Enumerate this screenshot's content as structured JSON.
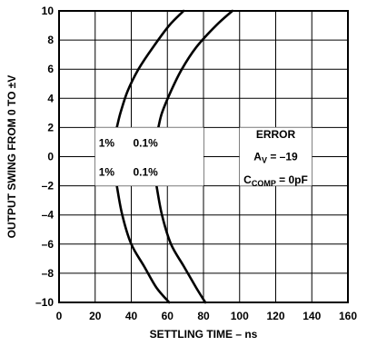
{
  "chart_data": {
    "type": "line",
    "xlabel": "SETTLING TIME – ns",
    "ylabel": "OUTPUT SWING FROM 0 TO ±V",
    "xlim": [
      0,
      160
    ],
    "ylim": [
      -10,
      10
    ],
    "xticks": [
      0,
      20,
      40,
      60,
      80,
      100,
      120,
      140,
      160
    ],
    "yticks": [
      10,
      8,
      6,
      4,
      2,
      0,
      -2,
      -4,
      -6,
      -8,
      -10
    ],
    "ytick_labels": [
      "10",
      "8",
      "6",
      "4",
      "2",
      "0",
      "–2",
      "–4",
      "–6",
      "–8",
      "–10"
    ],
    "grid": true,
    "series": [
      {
        "name": "1%",
        "position": "upper",
        "x": [
          32,
          34,
          38,
          44,
          52,
          61,
          69
        ],
        "y": [
          2,
          3,
          4.5,
          6,
          7.5,
          9,
          10
        ]
      },
      {
        "name": "0.1%",
        "position": "upper",
        "x": [
          55,
          57,
          62,
          68,
          76,
          87,
          96
        ],
        "y": [
          2,
          3,
          4.5,
          6,
          7.5,
          9,
          10
        ]
      },
      {
        "name": "1%",
        "position": "lower",
        "x": [
          32,
          35,
          40,
          47,
          54,
          61
        ],
        "y": [
          -2,
          -4,
          -6,
          -7.5,
          -9,
          -10
        ]
      },
      {
        "name": "0.1%",
        "position": "lower",
        "x": [
          54,
          57,
          62,
          69,
          76,
          81
        ],
        "y": [
          -2,
          -4,
          -6,
          -7.5,
          -9,
          -10
        ]
      }
    ],
    "annotations": {
      "error_title": "ERROR",
      "av_prefix": "A",
      "av_sub": "V",
      "av_value": " = –19",
      "ccomp_prefix": "C",
      "ccomp_sub": "COMP",
      "ccomp_value": " = 0pF",
      "label_1pct": "1%",
      "label_01pct": "0.1%"
    }
  }
}
